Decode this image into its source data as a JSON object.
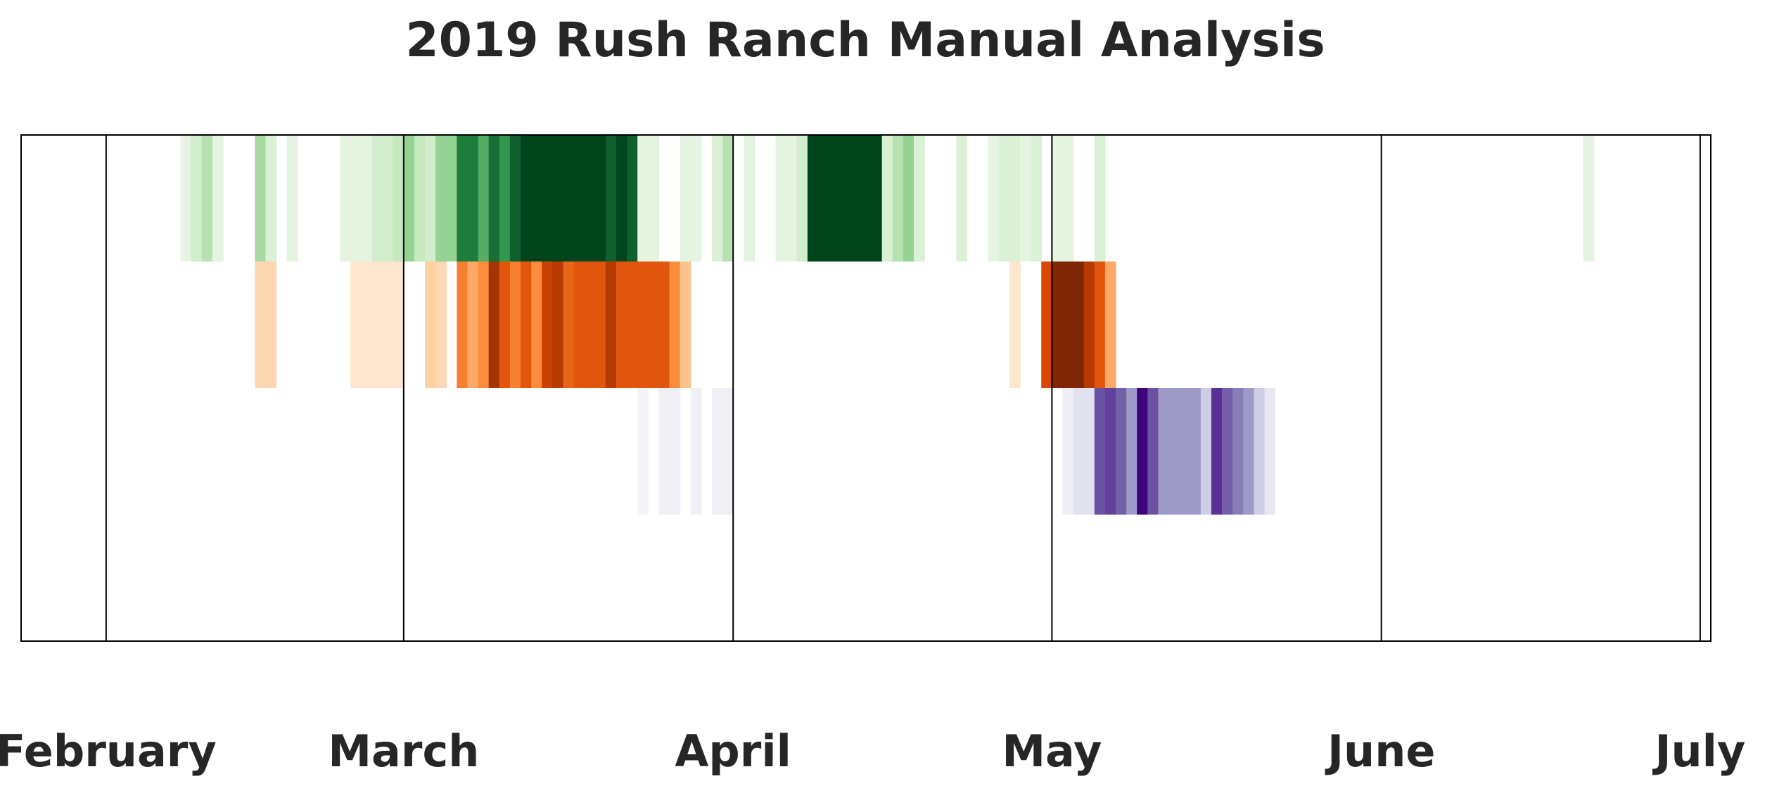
{
  "chart_data": {
    "type": "heatmap",
    "title": "2019 Rush Ranch Manual Analysis",
    "xlabel": "",
    "ylabel": "",
    "x_axis": "date",
    "xlim": [
      "2019-01-24",
      "2019-07-02"
    ],
    "grid": true,
    "legend": "none",
    "tick_labels": [
      {
        "label": "February",
        "date": "2019-02-01"
      },
      {
        "label": "March",
        "date": "2019-03-01"
      },
      {
        "label": "April",
        "date": "2019-04-01"
      },
      {
        "label": "May",
        "date": "2019-05-01"
      },
      {
        "label": "June",
        "date": "2019-06-01"
      },
      {
        "label": "July",
        "date": "2019-07-01"
      }
    ],
    "month_boundaries": [
      "2019-02-01",
      "2019-03-01",
      "2019-04-01",
      "2019-05-01",
      "2019-06-01",
      "2019-07-01"
    ],
    "rows": 4,
    "series": [
      {
        "color_scale": "Greens",
        "row": 0,
        "cells": [
          {
            "date": "2019-02-08",
            "value": 0.1
          },
          {
            "date": "2019-02-09",
            "value": 0.2
          },
          {
            "date": "2019-02-10",
            "value": 0.3
          },
          {
            "date": "2019-02-11",
            "value": 0.1
          },
          {
            "date": "2019-02-15",
            "value": 0.35
          },
          {
            "date": "2019-02-16",
            "value": 0.15
          },
          {
            "date": "2019-02-18",
            "value": 0.1
          },
          {
            "date": "2019-02-23",
            "value": 0.1
          },
          {
            "date": "2019-02-24",
            "value": 0.1
          },
          {
            "date": "2019-02-25",
            "value": 0.1
          },
          {
            "date": "2019-02-26",
            "value": 0.2
          },
          {
            "date": "2019-02-27",
            "value": 0.2
          },
          {
            "date": "2019-02-28",
            "value": 0.25
          },
          {
            "date": "2019-03-01",
            "value": 0.4
          },
          {
            "date": "2019-03-02",
            "value": 0.25
          },
          {
            "date": "2019-03-03",
            "value": 0.2
          },
          {
            "date": "2019-03-04",
            "value": 0.4
          },
          {
            "date": "2019-03-05",
            "value": 0.4
          },
          {
            "date": "2019-03-06",
            "value": 0.8
          },
          {
            "date": "2019-03-07",
            "value": 0.8
          },
          {
            "date": "2019-03-08",
            "value": 0.6
          },
          {
            "date": "2019-03-09",
            "value": 0.85
          },
          {
            "date": "2019-03-10",
            "value": 0.7
          },
          {
            "date": "2019-03-11",
            "value": 0.9
          },
          {
            "date": "2019-03-12",
            "value": 1.0
          },
          {
            "date": "2019-03-13",
            "value": 1.0
          },
          {
            "date": "2019-03-14",
            "value": 1.0
          },
          {
            "date": "2019-03-15",
            "value": 1.0
          },
          {
            "date": "2019-03-16",
            "value": 1.0
          },
          {
            "date": "2019-03-17",
            "value": 1.0
          },
          {
            "date": "2019-03-18",
            "value": 1.0
          },
          {
            "date": "2019-03-19",
            "value": 1.0
          },
          {
            "date": "2019-03-20",
            "value": 0.9
          },
          {
            "date": "2019-03-21",
            "value": 1.0
          },
          {
            "date": "2019-03-22",
            "value": 0.9
          },
          {
            "date": "2019-03-23",
            "value": 0.1
          },
          {
            "date": "2019-03-24",
            "value": 0.1
          },
          {
            "date": "2019-03-27",
            "value": 0.1
          },
          {
            "date": "2019-03-28",
            "value": 0.1
          },
          {
            "date": "2019-03-30",
            "value": 0.15
          },
          {
            "date": "2019-03-31",
            "value": 0.3
          },
          {
            "date": "2019-04-02",
            "value": 0.1
          },
          {
            "date": "2019-04-05",
            "value": 0.1
          },
          {
            "date": "2019-04-06",
            "value": 0.1
          },
          {
            "date": "2019-04-07",
            "value": 0.2
          },
          {
            "date": "2019-04-08",
            "value": 1.0
          },
          {
            "date": "2019-04-09",
            "value": 1.0
          },
          {
            "date": "2019-04-10",
            "value": 1.0
          },
          {
            "date": "2019-04-11",
            "value": 1.0
          },
          {
            "date": "2019-04-12",
            "value": 1.0
          },
          {
            "date": "2019-04-13",
            "value": 1.0
          },
          {
            "date": "2019-04-14",
            "value": 1.0
          },
          {
            "date": "2019-04-15",
            "value": 0.15
          },
          {
            "date": "2019-04-16",
            "value": 0.3
          },
          {
            "date": "2019-04-17",
            "value": 0.4
          },
          {
            "date": "2019-04-18",
            "value": 0.15
          },
          {
            "date": "2019-04-22",
            "value": 0.15
          },
          {
            "date": "2019-04-25",
            "value": 0.1
          },
          {
            "date": "2019-04-26",
            "value": 0.15
          },
          {
            "date": "2019-04-27",
            "value": 0.15
          },
          {
            "date": "2019-04-28",
            "value": 0.1
          },
          {
            "date": "2019-04-29",
            "value": 0.15
          },
          {
            "date": "2019-05-01",
            "value": 0.1
          },
          {
            "date": "2019-05-02",
            "value": 0.1
          },
          {
            "date": "2019-05-05",
            "value": 0.15
          },
          {
            "date": "2019-06-20",
            "value": 0.1
          }
        ]
      },
      {
        "color_scale": "Oranges",
        "row": 1,
        "cells": [
          {
            "date": "2019-02-15",
            "value": 0.2
          },
          {
            "date": "2019-02-16",
            "value": 0.2
          },
          {
            "date": "2019-02-24",
            "value": 0.1
          },
          {
            "date": "2019-02-25",
            "value": 0.1
          },
          {
            "date": "2019-02-26",
            "value": 0.1
          },
          {
            "date": "2019-02-27",
            "value": 0.1
          },
          {
            "date": "2019-02-28",
            "value": 0.1
          },
          {
            "date": "2019-03-03",
            "value": 0.25
          },
          {
            "date": "2019-03-04",
            "value": 0.2
          },
          {
            "date": "2019-03-06",
            "value": 0.55
          },
          {
            "date": "2019-03-07",
            "value": 0.4
          },
          {
            "date": "2019-03-08",
            "value": 0.5
          },
          {
            "date": "2019-03-09",
            "value": 0.9
          },
          {
            "date": "2019-03-10",
            "value": 0.7
          },
          {
            "date": "2019-03-11",
            "value": 0.55
          },
          {
            "date": "2019-03-12",
            "value": 0.7
          },
          {
            "date": "2019-03-13",
            "value": 0.5
          },
          {
            "date": "2019-03-14",
            "value": 0.8
          },
          {
            "date": "2019-03-15",
            "value": 0.85
          },
          {
            "date": "2019-03-16",
            "value": 0.65
          },
          {
            "date": "2019-03-17",
            "value": 0.7
          },
          {
            "date": "2019-03-18",
            "value": 0.7
          },
          {
            "date": "2019-03-19",
            "value": 0.7
          },
          {
            "date": "2019-03-20",
            "value": 0.85
          },
          {
            "date": "2019-03-21",
            "value": 0.7
          },
          {
            "date": "2019-03-22",
            "value": 0.7
          },
          {
            "date": "2019-03-23",
            "value": 0.7
          },
          {
            "date": "2019-03-24",
            "value": 0.7
          },
          {
            "date": "2019-03-25",
            "value": 0.7
          },
          {
            "date": "2019-03-26",
            "value": 0.5
          },
          {
            "date": "2019-03-27",
            "value": 0.3
          },
          {
            "date": "2019-04-27",
            "value": 0.1
          },
          {
            "date": "2019-04-30",
            "value": 0.75
          },
          {
            "date": "2019-05-01",
            "value": 1.0
          },
          {
            "date": "2019-05-02",
            "value": 1.0
          },
          {
            "date": "2019-05-03",
            "value": 1.0
          },
          {
            "date": "2019-05-04",
            "value": 0.85
          },
          {
            "date": "2019-05-05",
            "value": 0.7
          },
          {
            "date": "2019-05-06",
            "value": 0.4
          }
        ]
      },
      {
        "color_scale": "Purples",
        "row": 2,
        "cells": [
          {
            "date": "2019-03-23",
            "value": 0.05
          },
          {
            "date": "2019-03-25",
            "value": 0.08
          },
          {
            "date": "2019-03-26",
            "value": 0.08
          },
          {
            "date": "2019-03-28",
            "value": 0.08
          },
          {
            "date": "2019-03-30",
            "value": 0.08
          },
          {
            "date": "2019-03-31",
            "value": 0.08
          },
          {
            "date": "2019-05-02",
            "value": 0.1
          },
          {
            "date": "2019-05-03",
            "value": 0.2
          },
          {
            "date": "2019-05-04",
            "value": 0.2
          },
          {
            "date": "2019-05-05",
            "value": 0.75
          },
          {
            "date": "2019-05-06",
            "value": 0.8
          },
          {
            "date": "2019-05-07",
            "value": 0.7
          },
          {
            "date": "2019-05-08",
            "value": 0.5
          },
          {
            "date": "2019-05-09",
            "value": 1.0
          },
          {
            "date": "2019-05-10",
            "value": 0.75
          },
          {
            "date": "2019-05-11",
            "value": 0.5
          },
          {
            "date": "2019-05-12",
            "value": 0.5
          },
          {
            "date": "2019-05-13",
            "value": 0.5
          },
          {
            "date": "2019-05-14",
            "value": 0.5
          },
          {
            "date": "2019-05-15",
            "value": 0.3
          },
          {
            "date": "2019-05-16",
            "value": 0.85
          },
          {
            "date": "2019-05-17",
            "value": 0.7
          },
          {
            "date": "2019-05-18",
            "value": 0.6
          },
          {
            "date": "2019-05-19",
            "value": 0.5
          },
          {
            "date": "2019-05-20",
            "value": 0.3
          },
          {
            "date": "2019-05-21",
            "value": 0.15
          }
        ]
      }
    ]
  }
}
